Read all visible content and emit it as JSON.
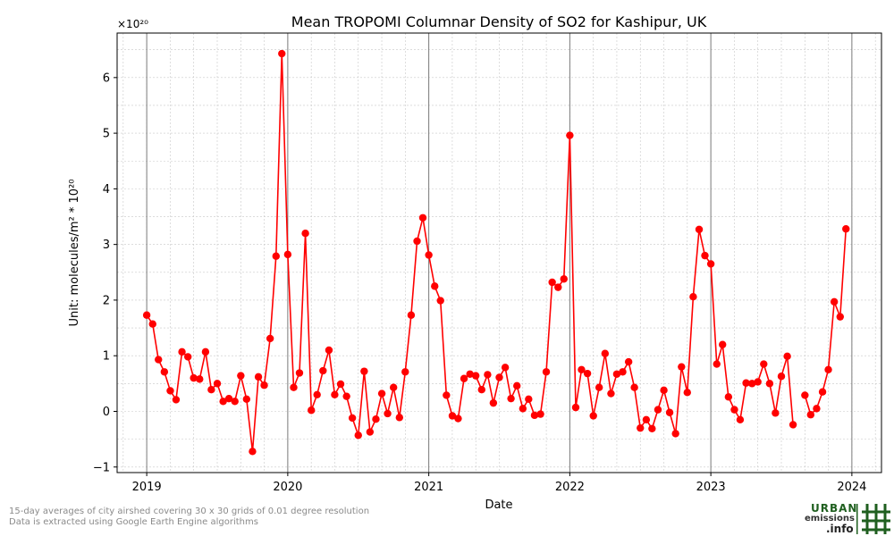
{
  "chart_data": {
    "type": "line",
    "title": "Mean TROPOMI Columnar Density of SO2 for Kashipur, UK",
    "xlabel": "Date",
    "ylabel": "Unit: molecules/m² * 10²⁰",
    "y_multiplier": "×10²⁰",
    "ylim": [
      -1.1,
      6.8
    ],
    "yticks": [
      -1,
      0,
      1,
      2,
      3,
      4,
      5,
      6
    ],
    "ytick_labels": [
      "−1",
      "0",
      "1",
      "2",
      "3",
      "4",
      "5",
      "6"
    ],
    "xlim": [
      2018.79,
      2024.21
    ],
    "xticks": [
      2019,
      2020,
      2021,
      2022,
      2023,
      2024
    ],
    "xtick_labels": [
      "2019",
      "2020",
      "2021",
      "2022",
      "2023",
      "2024"
    ],
    "year_lines": [
      2019,
      2020,
      2021,
      2022,
      2023,
      2024
    ],
    "grid": true,
    "line_color": "#ff0000",
    "marker_color": "#ff0000",
    "series": [
      {
        "name": "SO2",
        "points": [
          [
            2019.0,
            1.73
          ],
          [
            2019.042,
            1.57
          ],
          [
            2019.083,
            0.93
          ],
          [
            2019.125,
            0.71
          ],
          [
            2019.167,
            0.37
          ],
          [
            2019.208,
            0.21
          ],
          [
            2019.25,
            1.07
          ],
          [
            2019.292,
            0.98
          ],
          [
            2019.333,
            0.6
          ],
          [
            2019.375,
            0.58
          ],
          [
            2019.417,
            1.07
          ],
          [
            2019.458,
            0.39
          ],
          [
            2019.5,
            0.5
          ],
          [
            2019.542,
            0.18
          ],
          [
            2019.583,
            0.23
          ],
          [
            2019.625,
            0.18
          ],
          [
            2019.667,
            0.64
          ],
          [
            2019.708,
            0.22
          ],
          [
            2019.75,
            -0.72
          ],
          [
            2019.792,
            0.62
          ],
          [
            2019.833,
            0.47
          ],
          [
            2019.875,
            1.31
          ],
          [
            2019.917,
            2.79
          ],
          [
            2019.958,
            6.43
          ],
          [
            2020.0,
            2.82
          ],
          [
            2020.042,
            0.43
          ],
          [
            2020.083,
            0.69
          ],
          [
            2020.125,
            3.2
          ],
          [
            2020.167,
            0.02
          ],
          [
            2020.208,
            0.3
          ],
          [
            2020.25,
            0.73
          ],
          [
            2020.292,
            1.1
          ],
          [
            2020.333,
            0.3
          ],
          [
            2020.375,
            0.49
          ],
          [
            2020.417,
            0.27
          ],
          [
            2020.458,
            -0.12
          ],
          [
            2020.5,
            -0.43
          ],
          [
            2020.542,
            0.72
          ],
          [
            2020.583,
            -0.37
          ],
          [
            2020.625,
            -0.14
          ],
          [
            2020.667,
            0.32
          ],
          [
            2020.708,
            -0.04
          ],
          [
            2020.75,
            0.43
          ],
          [
            2020.792,
            -0.11
          ],
          [
            2020.833,
            0.71
          ],
          [
            2020.875,
            1.73
          ],
          [
            2020.917,
            3.06
          ],
          [
            2020.958,
            3.48
          ],
          [
            2021.0,
            2.81
          ],
          [
            2021.042,
            2.25
          ],
          [
            2021.083,
            1.99
          ],
          [
            2021.125,
            0.29
          ],
          [
            2021.167,
            -0.08
          ],
          [
            2021.208,
            -0.13
          ],
          [
            2021.25,
            0.59
          ],
          [
            2021.292,
            0.67
          ],
          [
            2021.333,
            0.64
          ],
          [
            2021.375,
            0.39
          ],
          [
            2021.417,
            0.66
          ],
          [
            2021.458,
            0.15
          ],
          [
            2021.5,
            0.61
          ],
          [
            2021.542,
            0.79
          ],
          [
            2021.583,
            0.23
          ],
          [
            2021.625,
            0.46
          ],
          [
            2021.667,
            0.05
          ],
          [
            2021.708,
            0.22
          ],
          [
            2021.75,
            -0.07
          ],
          [
            2021.792,
            -0.05
          ],
          [
            2021.833,
            0.71
          ],
          [
            2021.875,
            2.32
          ],
          [
            2021.917,
            2.23
          ],
          [
            2021.958,
            2.38
          ],
          [
            2022.0,
            4.96
          ],
          [
            2022.042,
            0.07
          ],
          [
            2022.083,
            0.75
          ],
          [
            2022.125,
            0.68
          ],
          [
            2022.167,
            -0.08
          ],
          [
            2022.208,
            0.43
          ],
          [
            2022.25,
            1.04
          ],
          [
            2022.292,
            0.32
          ],
          [
            2022.333,
            0.67
          ],
          [
            2022.375,
            0.71
          ],
          [
            2022.417,
            0.89
          ],
          [
            2022.458,
            0.43
          ],
          [
            2022.5,
            -0.3
          ],
          [
            2022.542,
            -0.15
          ],
          [
            2022.583,
            -0.31
          ],
          [
            2022.625,
            0.03
          ],
          [
            2022.667,
            0.38
          ],
          [
            2022.708,
            -0.02
          ],
          [
            2022.75,
            -0.4
          ],
          [
            2022.792,
            0.8
          ],
          [
            2022.833,
            0.34
          ],
          [
            2022.875,
            2.06
          ],
          [
            2022.917,
            3.27
          ],
          [
            2022.958,
            2.8
          ],
          [
            2023.0,
            2.65
          ],
          [
            2023.042,
            0.85
          ],
          [
            2023.083,
            1.2
          ],
          [
            2023.125,
            0.26
          ],
          [
            2023.167,
            0.03
          ],
          [
            2023.208,
            -0.15
          ],
          [
            2023.25,
            0.51
          ],
          [
            2023.292,
            0.5
          ],
          [
            2023.333,
            0.53
          ],
          [
            2023.375,
            0.85
          ],
          [
            2023.417,
            0.5
          ],
          [
            2023.458,
            -0.03
          ],
          [
            2023.5,
            0.63
          ],
          [
            2023.542,
            0.99
          ],
          [
            2023.583,
            -0.24
          ],
          null,
          [
            2023.667,
            0.29
          ],
          [
            2023.708,
            -0.06
          ],
          [
            2023.75,
            0.05
          ],
          [
            2023.792,
            0.35
          ],
          [
            2023.833,
            0.75
          ],
          [
            2023.875,
            1.97
          ],
          [
            2023.917,
            1.7
          ],
          [
            2023.958,
            3.28
          ]
        ]
      }
    ]
  },
  "footnotes": {
    "line1": "15-day averages of city airshed covering 30 x 30 grids of 0.01 degree resolution",
    "line2": "Data is extracted using Google Earth Engine algorithms"
  },
  "logo": {
    "word1": "URBAN",
    "word2": "emissions",
    "word3": ".info",
    "color": "#1f5f1f"
  }
}
